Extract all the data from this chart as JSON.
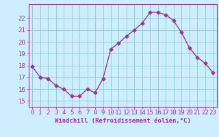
{
  "x": [
    0,
    1,
    2,
    3,
    4,
    5,
    6,
    7,
    8,
    9,
    10,
    11,
    12,
    13,
    14,
    15,
    16,
    17,
    18,
    19,
    20,
    21,
    22,
    23
  ],
  "y": [
    17.9,
    17.0,
    16.9,
    16.3,
    16.0,
    15.4,
    15.4,
    16.0,
    15.7,
    16.9,
    19.4,
    19.9,
    20.5,
    21.0,
    21.6,
    22.5,
    22.5,
    22.3,
    21.8,
    20.8,
    19.5,
    18.7,
    18.2,
    17.4
  ],
  "line_color": "#993399",
  "marker": "D",
  "marker_size": 2.5,
  "bg_color": "#cceeff",
  "grid_color": "#99cccc",
  "xlabel": "Windchill (Refroidissement éolien,°C)",
  "ylabel_ticks": [
    15,
    16,
    17,
    18,
    19,
    20,
    21,
    22
  ],
  "ylim": [
    14.5,
    23.2
  ],
  "xlim": [
    -0.5,
    23.5
  ],
  "axis_color": "#993399",
  "tick_color": "#993399",
  "xlabel_fontsize": 6.5,
  "tick_fontsize": 6.5
}
